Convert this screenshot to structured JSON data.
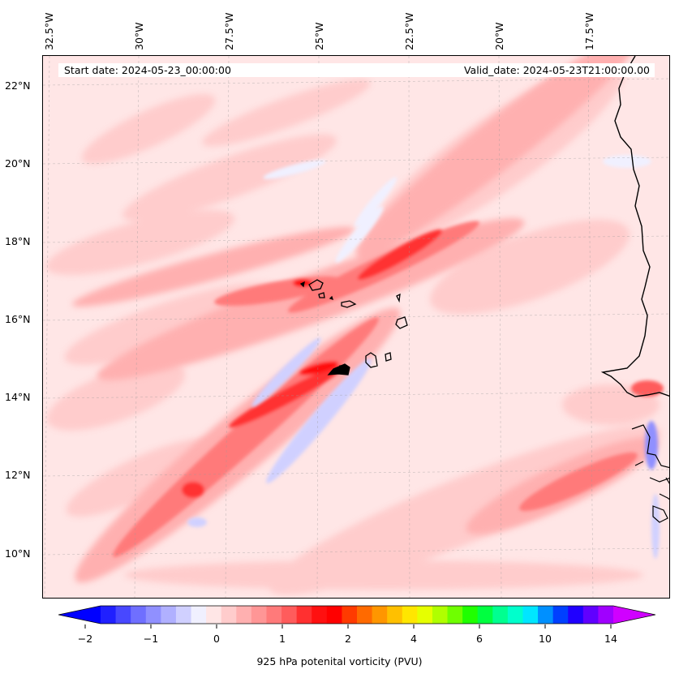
{
  "map": {
    "lon_labels": [
      "32.5°W",
      "30°W",
      "27.5°W",
      "25°W",
      "22.5°W",
      "20°W",
      "17.5°W"
    ],
    "lat_labels": [
      "22°N",
      "20°N",
      "18°N",
      "16°N",
      "14°N",
      "12°N",
      "10°N"
    ],
    "start_date": "Start date: 2024-05-23_00:00:00",
    "valid_date": "Valid_date: 2024-05-23T21:00:00.00",
    "field_name": "925 hPa potenital vorticity (PVU)",
    "background_color": "#ffe6e6",
    "coastline_color": "#000000"
  },
  "colorbar": {
    "tick_labels": [
      "−2",
      "−1",
      "0",
      "1",
      "2",
      "4",
      "6",
      "10",
      "14"
    ],
    "colors": [
      "#0000ff",
      "#2020ff",
      "#4848ff",
      "#6f6fff",
      "#9090ff",
      "#b0b0ff",
      "#d0d0ff",
      "#f0f0ff",
      "#ffe6e6",
      "#ffcccc",
      "#ffb0b0",
      "#ff9696",
      "#ff7a7a",
      "#ff5c5c",
      "#ff3030",
      "#ff1010",
      "#ff0000",
      "#ff3a00",
      "#ff6a00",
      "#ff9600",
      "#ffc000",
      "#ffe600",
      "#e6ff00",
      "#b0ff00",
      "#6fff00",
      "#20ff00",
      "#00ff40",
      "#00ff90",
      "#00ffcc",
      "#00e6ff",
      "#0090ff",
      "#0040ff",
      "#2000ff",
      "#6000ff",
      "#a000ff",
      "#d000ff"
    ]
  }
}
